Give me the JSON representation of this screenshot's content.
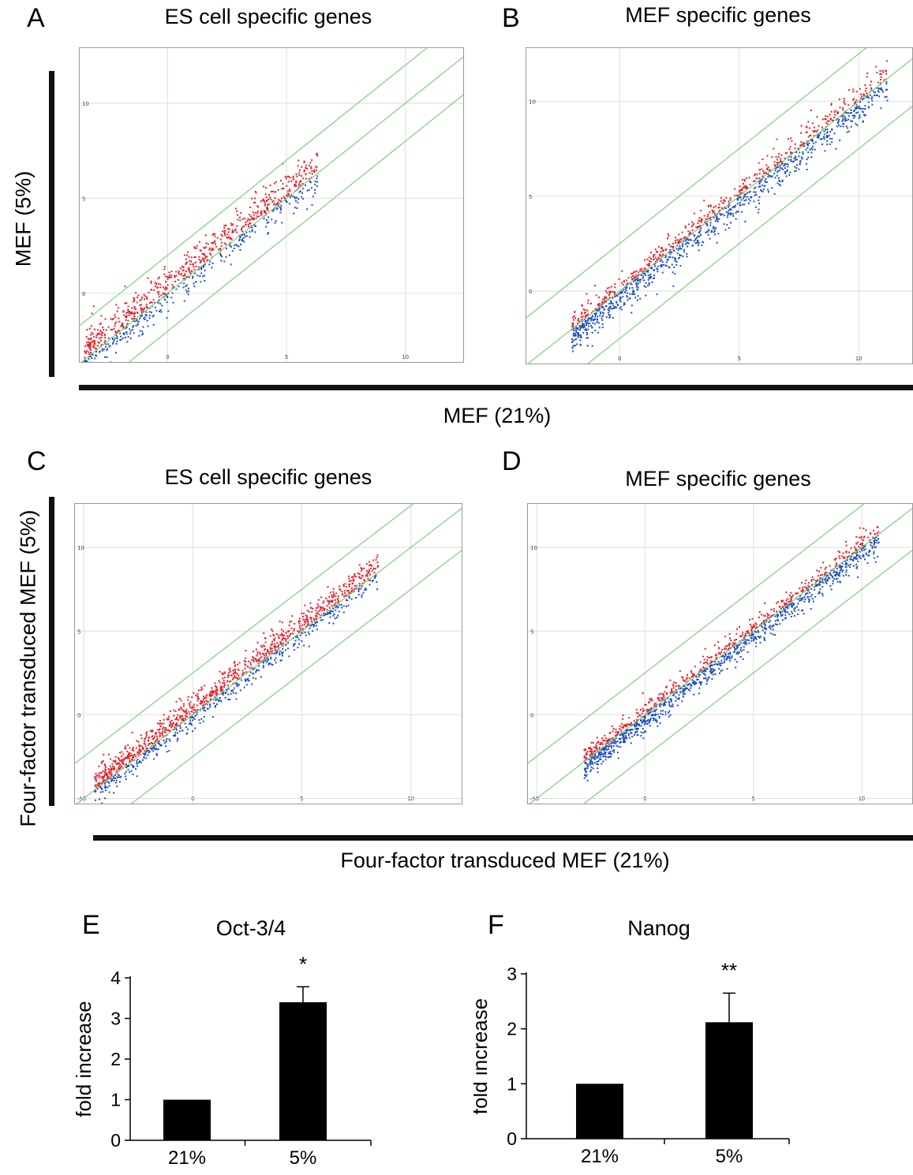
{
  "panels": {
    "A": {
      "letter": "A",
      "title": "ES cell specific genes"
    },
    "B": {
      "letter": "B",
      "title": "MEF specific genes"
    },
    "C": {
      "letter": "C",
      "title": "ES cell specific genes"
    },
    "D": {
      "letter": "D",
      "title": "MEF specific genes"
    },
    "E": {
      "letter": "E",
      "title": "Oct-3/4"
    },
    "F": {
      "letter": "F",
      "title": "Nanog"
    }
  },
  "top_axes": {
    "ylabel": "MEF (5%)",
    "xlabel": "MEF  (21%)"
  },
  "mid_axes": {
    "ylabel": "Four-factor transduced MEF (5%)",
    "xlabel": "Four-factor transduced MEF (21%)"
  },
  "colors": {
    "up": "#e8202a",
    "down": "#1f4fbf",
    "guide": "#7ccf7c",
    "grid": "#dddddd",
    "bar": "#000000"
  },
  "chart_data": [
    {
      "id": "A",
      "type": "scatter",
      "title": "ES cell specific genes",
      "xlim": [
        -3.7,
        12.5
      ],
      "ylim": [
        -3.7,
        12.9
      ],
      "xticks": [
        0,
        5,
        10
      ],
      "yticks": [
        0,
        5,
        10
      ],
      "guide_offsets": [
        2,
        0,
        -2
      ],
      "cloud": {
        "x_min": -3.5,
        "x_max": 6.3,
        "n": 900,
        "spread": 1.1,
        "skew": 0.45
      },
      "grid": true
    },
    {
      "id": "B",
      "type": "scatter",
      "title": "MEF specific genes",
      "xlim": [
        -3.9,
        12.3
      ],
      "ylim": [
        -3.9,
        12.8
      ],
      "xticks": [
        0,
        5,
        10
      ],
      "yticks": [
        0,
        5,
        10
      ],
      "guide_offsets": [
        2.5,
        0,
        -2.5
      ],
      "cloud": {
        "x_min": -2,
        "x_max": 11.2,
        "n": 1300,
        "spread": 0.9,
        "skew": -0.3
      },
      "grid": true
    },
    {
      "id": "C",
      "type": "scatter",
      "title": "ES cell specific genes",
      "xlim": [
        -5.4,
        12.4
      ],
      "ylim": [
        -5.4,
        12.6
      ],
      "xticks": [
        -5,
        0,
        5,
        10
      ],
      "yticks": [
        -5,
        0,
        5,
        10
      ],
      "guide_offsets": [
        2.5,
        0,
        -2.5
      ],
      "cloud": {
        "x_min": -4.5,
        "x_max": 8.5,
        "n": 1300,
        "spread": 0.9,
        "skew": 0.35
      },
      "grid": true
    },
    {
      "id": "D",
      "type": "scatter",
      "title": "MEF specific genes",
      "xlim": [
        -5.4,
        12.4
      ],
      "ylim": [
        -5.4,
        12.6
      ],
      "xticks": [
        -5,
        0,
        5,
        10
      ],
      "yticks": [
        -5,
        0,
        5,
        10
      ],
      "guide_offsets": [
        2.5,
        0,
        -2.5
      ],
      "cloud": {
        "x_min": -2.8,
        "x_max": 10.8,
        "n": 1400,
        "spread": 0.8,
        "skew": -0.3
      },
      "grid": true
    },
    {
      "id": "E",
      "type": "bar",
      "title": "Oct-3/4",
      "categories": [
        "21%",
        "5%"
      ],
      "values": [
        1.0,
        3.4
      ],
      "errors": [
        0,
        0.38
      ],
      "significance": [
        "",
        "*"
      ],
      "ylabel": "fold increase",
      "ylim": [
        0,
        4
      ],
      "yticks": [
        0,
        1,
        2,
        3,
        4
      ]
    },
    {
      "id": "F",
      "type": "bar",
      "title": "Nanog",
      "categories": [
        "21%",
        "5%"
      ],
      "values": [
        1.0,
        2.12
      ],
      "errors": [
        0,
        0.53
      ],
      "significance": [
        "",
        "**"
      ],
      "ylabel": "fold increase",
      "ylim": [
        0,
        3
      ],
      "yticks": [
        0,
        1,
        2,
        3
      ]
    }
  ]
}
